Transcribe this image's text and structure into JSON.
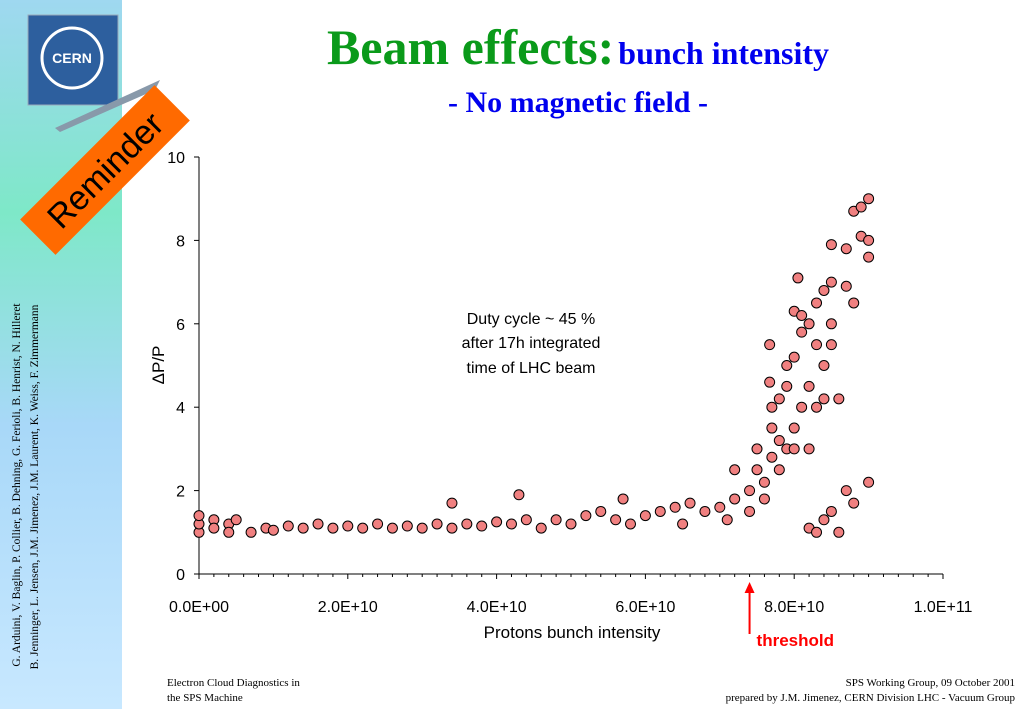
{
  "slide": {
    "title": "Beam effects:",
    "title_sub": "bunch intensity",
    "subtitle": "- No magnetic field -",
    "logo": "CERN",
    "badge": "Reminder",
    "authors": [
      "G. Arduini, V. Baglin, P. Collier, B. Dehning, G. Ferioli, B. Henrist, N. Hilleret",
      "B. Jenninger, L. Jensen, J.M. Jimenez, J.M. Laurent, K. Weiss, F. Zimmermann"
    ],
    "footer_left": [
      "Electron Cloud Diagnostics in",
      "the SPS Machine"
    ],
    "footer_right": [
      "SPS Working Group, 09 October 2001",
      "prepared by J.M. Jimenez, CERN Division LHC - Vacuum Group"
    ]
  },
  "chart_data": {
    "type": "scatter",
    "xlabel": "Protons bunch intensity",
    "ylabel": "ΔP/P",
    "annotation": [
      "Duty cycle ~ 45 %",
      "after 17h integrated",
      "time of LHC beam"
    ],
    "threshold": {
      "label": "threshold",
      "x": 74000000000.0,
      "color": "#ff0000"
    },
    "color": "#f08080",
    "grid": false,
    "xlim": [
      0,
      100000000000.0
    ],
    "ylim": [
      0,
      10
    ],
    "xticks": [
      {
        "value": 0,
        "label": "0.0E+00"
      },
      {
        "value": 20000000000.0,
        "label": "2.0E+10"
      },
      {
        "value": 40000000000.0,
        "label": "4.0E+10"
      },
      {
        "value": 60000000000.0,
        "label": "6.0E+10"
      },
      {
        "value": 80000000000.0,
        "label": "8.0E+10"
      },
      {
        "value": 100000000000.0,
        "label": "1.0E+11"
      }
    ],
    "yticks": [
      0,
      2,
      4,
      6,
      8,
      10
    ],
    "x": [
      0,
      0,
      0,
      2000000000.0,
      2000000000.0,
      4000000000.0,
      4000000000.0,
      5000000000.0,
      7000000000.0,
      9000000000.0,
      10000000000.0,
      12000000000.0,
      14000000000.0,
      16000000000.0,
      18000000000.0,
      20000000000.0,
      22000000000.0,
      24000000000.0,
      26000000000.0,
      28000000000.0,
      30000000000.0,
      32000000000.0,
      34000000000.0,
      34000000000.0,
      36000000000.0,
      38000000000.0,
      40000000000.0,
      42000000000.0,
      43000000000.0,
      44000000000.0,
      46000000000.0,
      48000000000.0,
      50000000000.0,
      52000000000.0,
      54000000000.0,
      56000000000.0,
      57000000000.0,
      58000000000.0,
      60000000000.0,
      62000000000.0,
      64000000000.0,
      65000000000.0,
      66000000000.0,
      68000000000.0,
      70000000000.0,
      71000000000.0,
      72000000000.0,
      72000000000.0,
      74000000000.0,
      74000000000.0,
      75000000000.0,
      75000000000.0,
      76000000000.0,
      76000000000.0,
      77000000000.0,
      77000000000.0,
      77000000000.0,
      76700000000.0,
      76700000000.0,
      78000000000.0,
      78000000000.0,
      78000000000.0,
      79000000000.0,
      79000000000.0,
      79000000000.0,
      80000000000.0,
      80000000000.0,
      80000000000.0,
      80000000000.0,
      80500000000.0,
      81000000000.0,
      81000000000.0,
      81000000000.0,
      82000000000.0,
      82000000000.0,
      82000000000.0,
      82000000000.0,
      83000000000.0,
      83000000000.0,
      83000000000.0,
      83000000000.0,
      84000000000.0,
      84000000000.0,
      84000000000.0,
      84000000000.0,
      85000000000.0,
      85000000000.0,
      85000000000.0,
      85000000000.0,
      85000000000.0,
      86000000000.0,
      86000000000.0,
      87000000000.0,
      87000000000.0,
      87000000000.0,
      88000000000.0,
      88000000000.0,
      88000000000.0,
      89000000000.0,
      89000000000.0,
      90000000000.0,
      90000000000.0,
      90000000000.0,
      90000000000.0
    ],
    "values": [
      1.0,
      1.2,
      1.4,
      1.3,
      1.1,
      1.2,
      1.0,
      1.3,
      1.0,
      1.1,
      1.05,
      1.15,
      1.1,
      1.2,
      1.1,
      1.15,
      1.1,
      1.2,
      1.1,
      1.15,
      1.1,
      1.2,
      1.7,
      1.1,
      1.2,
      1.15,
      1.25,
      1.2,
      1.9,
      1.3,
      1.1,
      1.3,
      1.2,
      1.4,
      1.5,
      1.3,
      1.8,
      1.2,
      1.4,
      1.5,
      1.6,
      1.2,
      1.7,
      1.5,
      1.6,
      1.3,
      2.5,
      1.8,
      2.0,
      1.5,
      2.5,
      3.0,
      1.8,
      2.2,
      2.8,
      3.5,
      4.0,
      5.5,
      4.6,
      2.5,
      3.2,
      4.2,
      3.0,
      4.5,
      5.0,
      3.0,
      3.5,
      5.2,
      6.3,
      7.1,
      4.0,
      6.2,
      5.8,
      3.0,
      4.5,
      6.0,
      1.1,
      4.0,
      5.5,
      6.5,
      1.0,
      4.2,
      5.0,
      6.8,
      1.3,
      5.5,
      6.0,
      7.0,
      7.9,
      1.5,
      4.2,
      1.0,
      7.8,
      6.9,
      2.0,
      6.5,
      8.7,
      1.7,
      8.8,
      8.1,
      9.0,
      7.6,
      8.0,
      2.2
    ]
  }
}
